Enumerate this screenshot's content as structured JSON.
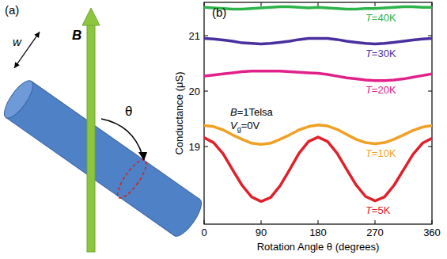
{
  "diagram": {
    "panel_label": "(a)",
    "width_label": "w",
    "field_label": "B",
    "angle_label": "θ"
  },
  "chart_data": {
    "type": "line",
    "panel_label": "(b)",
    "x_label": "Rotation Angle θ (degrees)",
    "y_label": "Conductance (μS)",
    "annotations": [
      "B=1Telsa",
      "Vg=0V"
    ],
    "x": [
      0,
      15,
      30,
      45,
      60,
      75,
      90,
      105,
      120,
      135,
      150,
      165,
      180,
      195,
      210,
      225,
      240,
      255,
      270,
      285,
      300,
      315,
      330,
      345,
      360
    ],
    "xlim": [
      0,
      360
    ],
    "xticks": [
      0,
      90,
      180,
      270,
      360
    ],
    "ylim": [
      17.6,
      21.6
    ],
    "yticks": [
      19,
      20,
      21
    ],
    "series": [
      {
        "name": "T=40K",
        "color": "#2db34a",
        "values": [
          21.51,
          21.5,
          21.49,
          21.48,
          21.48,
          21.49,
          21.5,
          21.51,
          21.52,
          21.52,
          21.51,
          21.5,
          21.51,
          21.5,
          21.49,
          21.48,
          21.48,
          21.49,
          21.49,
          21.5,
          21.51,
          21.52,
          21.52,
          21.51,
          21.51
        ]
      },
      {
        "name": "T=30K",
        "color": "#4a2f9e",
        "values": [
          20.95,
          20.94,
          20.92,
          20.9,
          20.87,
          20.86,
          20.85,
          20.86,
          20.88,
          20.9,
          20.93,
          20.95,
          20.95,
          20.95,
          20.93,
          20.9,
          20.88,
          20.86,
          20.85,
          20.86,
          20.88,
          20.9,
          20.92,
          20.94,
          20.95
        ]
      },
      {
        "name": "T=20K",
        "color": "#e0218a",
        "values": [
          20.27,
          20.29,
          20.31,
          20.33,
          20.35,
          20.36,
          20.36,
          20.36,
          20.36,
          20.35,
          20.34,
          20.33,
          20.32,
          20.3,
          20.27,
          20.24,
          20.22,
          20.2,
          20.19,
          20.19,
          20.2,
          20.22,
          20.25,
          20.28,
          20.31
        ]
      },
      {
        "name": "T=10K",
        "color": "#f0a024",
        "values": [
          19.38,
          19.36,
          19.3,
          19.21,
          19.13,
          19.06,
          19.04,
          19.06,
          19.13,
          19.21,
          19.3,
          19.36,
          19.39,
          19.37,
          19.31,
          19.22,
          19.13,
          19.07,
          19.05,
          19.07,
          19.13,
          19.21,
          19.29,
          19.35,
          19.38
        ]
      },
      {
        "name": "T=5K",
        "color": "#e0202a",
        "values": [
          19.16,
          19.07,
          18.87,
          18.58,
          18.3,
          18.09,
          18.01,
          18.08,
          18.29,
          18.58,
          18.88,
          19.09,
          19.17,
          19.09,
          18.88,
          18.59,
          18.31,
          18.1,
          18.02,
          18.09,
          18.3,
          18.58,
          18.86,
          19.06,
          19.15
        ]
      }
    ]
  }
}
